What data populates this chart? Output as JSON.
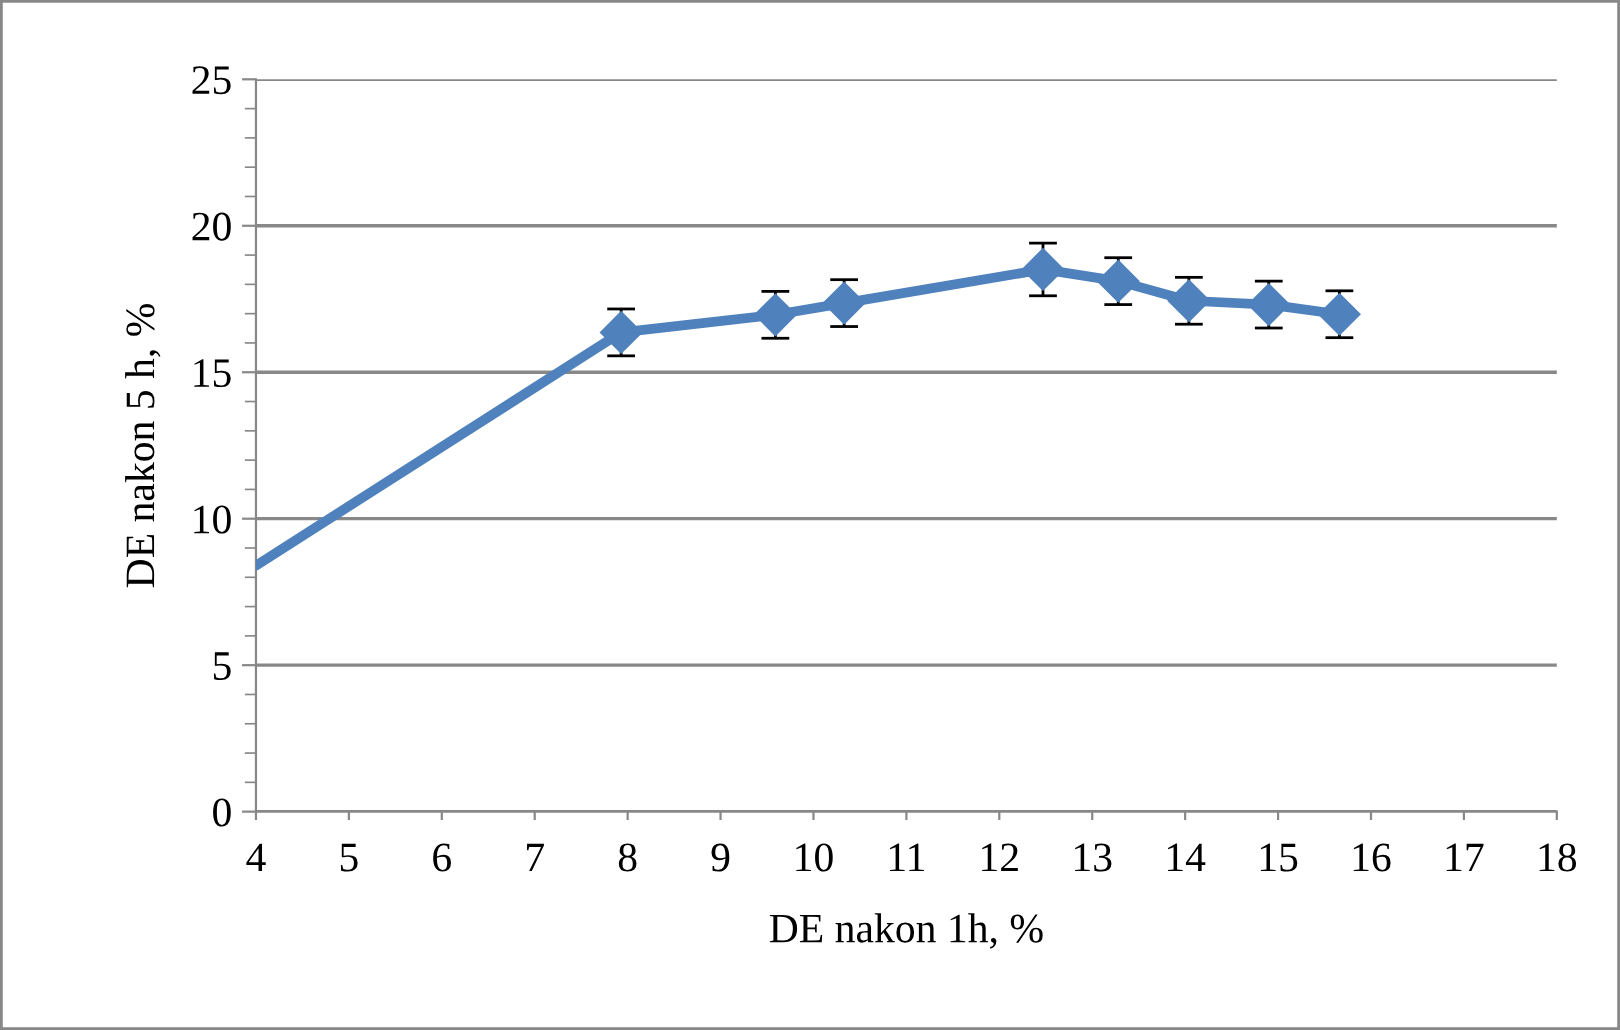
{
  "chart_data": {
    "type": "line",
    "xlabel": "DE nakon 1h, %",
    "ylabel": "DE nakon 5 h, %",
    "series": [
      {
        "type": "line",
        "color": "#4f81bd",
        "x": [
          4,
          7.93
        ],
        "values": [
          8.4,
          16.36
        ]
      },
      {
        "type": "line",
        "color": "#4f81bd",
        "marker": "diamond",
        "x": [
          7.93,
          9.59,
          10.33,
          12.47,
          13.28,
          14.04,
          14.9,
          15.66
        ],
        "values": [
          16.36,
          16.96,
          17.36,
          18.51,
          18.11,
          17.44,
          17.31,
          16.98
        ],
        "errors": [
          0.8,
          0.8,
          0.8,
          0.9,
          0.8,
          0.8,
          0.8,
          0.8
        ]
      }
    ],
    "xlim": [
      4,
      18
    ],
    "xticks": [
      4,
      5,
      6,
      7,
      8,
      9,
      10,
      11,
      12,
      13,
      14,
      15,
      16,
      17,
      18
    ],
    "ylim": [
      0,
      25
    ],
    "yticks": [
      0,
      5,
      10,
      15,
      20,
      25
    ],
    "grid": "y"
  }
}
